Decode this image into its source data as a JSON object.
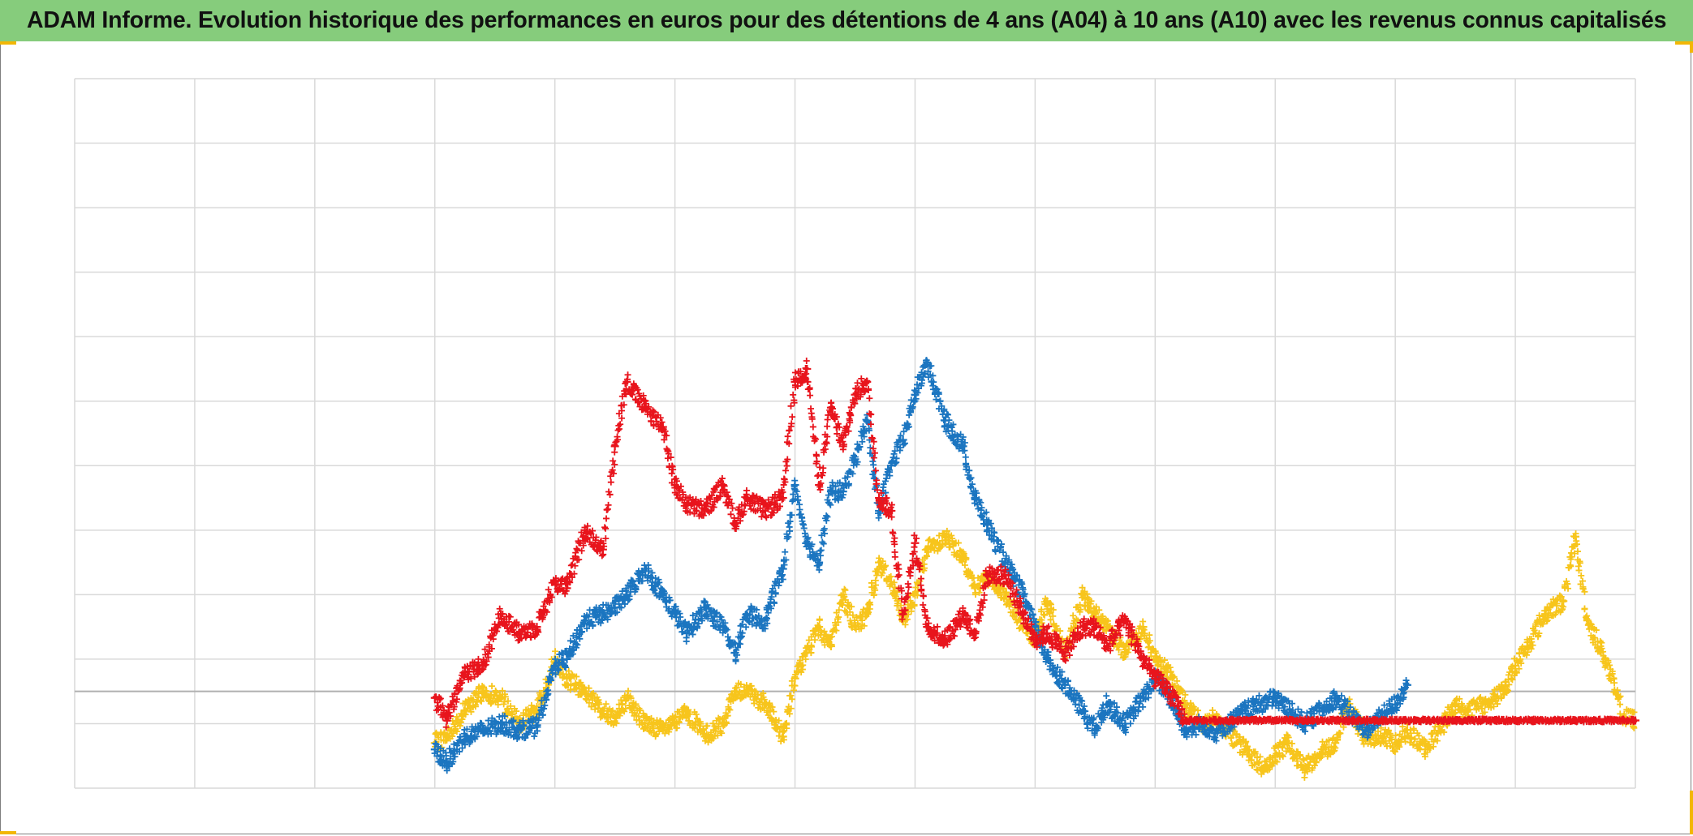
{
  "title": "ADAM Informe. Evolution historique des performances en euros pour des détentions de 4 ans (A04) à 10 ans (A10) avec les revenus connus capitalisés",
  "colors": {
    "title_bar": "#86cc7c",
    "gridline": "#d9d9d9",
    "axis": "#b0b0b0",
    "corner_accent": "#f2b705"
  },
  "chart_data": {
    "type": "scatter",
    "marker": "plus",
    "title": "ADAM Informe. Evolution historique des performances en euros pour des détentions de 4 ans (A04) à 10 ans (A10) avec les revenus connus capitalisés",
    "xlabel": "",
    "ylabel": "",
    "xlim": [
      0,
      13
    ],
    "ylim": [
      -1.5,
      9.5
    ],
    "grid": true,
    "legend": "none",
    "tick_labels_visible": false,
    "series": [
      {
        "color": "#e8141c",
        "x": [
          3.0,
          3.1,
          3.25,
          3.4,
          3.55,
          3.7,
          3.85,
          4.0,
          4.1,
          4.25,
          4.4,
          4.5,
          4.6,
          4.75,
          4.9,
          5.0,
          5.1,
          5.25,
          5.4,
          5.5,
          5.6,
          5.75,
          5.9,
          6.0,
          6.1,
          6.2,
          6.3,
          6.4,
          6.5,
          6.6,
          6.7,
          6.8,
          6.9,
          7.0,
          7.1,
          7.25,
          7.4,
          7.5,
          7.6,
          7.75,
          7.9,
          8.0,
          8.1,
          8.25,
          8.4,
          8.5,
          8.6,
          8.75,
          8.9,
          9.0,
          9.1,
          9.25,
          9.4,
          9.5,
          10.0,
          10.5,
          11.0,
          11.5,
          12.0,
          12.5,
          13.0
        ],
        "y": [
          -0.1,
          -0.45,
          0.3,
          0.4,
          1.2,
          0.9,
          1.0,
          1.7,
          1.6,
          2.5,
          2.2,
          3.8,
          4.8,
          4.4,
          4.1,
          3.2,
          2.9,
          2.8,
          3.2,
          2.6,
          3.0,
          2.8,
          3.0,
          4.8,
          5.0,
          3.2,
          4.4,
          3.8,
          4.6,
          4.8,
          3.0,
          2.8,
          1.2,
          2.3,
          1.0,
          0.8,
          1.2,
          0.9,
          1.8,
          1.8,
          1.2,
          0.8,
          0.9,
          0.6,
          1.0,
          1.0,
          0.7,
          1.1,
          0.5,
          0.2,
          0.05,
          -0.45,
          -0.45,
          -0.45,
          -0.45,
          -0.45,
          -0.45,
          -0.45,
          -0.45,
          -0.45,
          -0.45
        ]
      },
      {
        "color": "#1b75c0",
        "x": [
          3.0,
          3.1,
          3.25,
          3.4,
          3.55,
          3.7,
          3.85,
          4.0,
          4.1,
          4.25,
          4.4,
          4.5,
          4.6,
          4.75,
          4.9,
          5.0,
          5.1,
          5.25,
          5.4,
          5.5,
          5.6,
          5.75,
          5.9,
          6.0,
          6.1,
          6.2,
          6.3,
          6.4,
          6.5,
          6.6,
          6.7,
          6.8,
          6.9,
          7.0,
          7.1,
          7.25,
          7.4,
          7.5,
          7.6,
          7.75,
          7.9,
          8.0,
          8.1,
          8.25,
          8.4,
          8.5,
          8.6,
          8.75,
          8.9,
          9.0,
          9.1,
          9.25,
          9.4,
          9.5,
          9.75,
          10.0,
          10.25,
          10.5,
          10.75,
          11.0,
          11.1
        ],
        "y": [
          -0.9,
          -1.1,
          -0.7,
          -0.6,
          -0.5,
          -0.6,
          -0.55,
          0.4,
          0.5,
          1.1,
          1.2,
          1.3,
          1.5,
          1.9,
          1.5,
          1.2,
          0.9,
          1.3,
          1.0,
          0.6,
          1.2,
          1.1,
          1.9,
          3.2,
          2.3,
          2.0,
          3.1,
          3.1,
          3.6,
          4.2,
          2.8,
          3.5,
          3.9,
          4.6,
          5.1,
          4.2,
          3.8,
          3.0,
          2.6,
          2.0,
          1.5,
          1.0,
          0.5,
          0.1,
          -0.3,
          -0.6,
          -0.2,
          -0.5,
          -0.1,
          0.2,
          0.0,
          -0.6,
          -0.5,
          -0.65,
          -0.3,
          -0.1,
          -0.5,
          -0.1,
          -0.6,
          -0.2,
          0.1
        ]
      },
      {
        "color": "#f7c51c",
        "x": [
          3.0,
          3.1,
          3.25,
          3.4,
          3.55,
          3.7,
          3.85,
          4.0,
          4.1,
          4.25,
          4.4,
          4.5,
          4.6,
          4.75,
          4.9,
          5.0,
          5.1,
          5.25,
          5.4,
          5.5,
          5.6,
          5.75,
          5.9,
          6.0,
          6.1,
          6.2,
          6.3,
          6.4,
          6.5,
          6.6,
          6.7,
          6.8,
          6.9,
          7.0,
          7.1,
          7.25,
          7.4,
          7.5,
          7.6,
          7.75,
          7.9,
          8.0,
          8.1,
          8.25,
          8.4,
          8.5,
          8.6,
          8.75,
          8.9,
          9.0,
          9.1,
          9.25,
          9.4,
          9.5,
          9.6,
          9.75,
          9.9,
          10.0,
          10.1,
          10.25,
          10.4,
          10.5,
          10.6,
          10.75,
          10.9,
          11.0,
          11.1,
          11.25,
          11.4,
          11.5,
          11.6,
          11.75,
          11.9,
          12.0,
          12.1,
          12.25,
          12.4,
          12.5,
          12.6,
          12.75,
          12.9,
          13.0
        ],
        "y": [
          -0.8,
          -0.7,
          -0.3,
          0.0,
          -0.1,
          -0.5,
          -0.3,
          0.5,
          0.2,
          0.0,
          -0.3,
          -0.4,
          -0.1,
          -0.5,
          -0.6,
          -0.5,
          -0.3,
          -0.7,
          -0.5,
          0.0,
          0.0,
          -0.2,
          -0.7,
          0.2,
          0.6,
          1.0,
          0.7,
          1.5,
          1.0,
          1.2,
          2.0,
          1.7,
          1.1,
          1.5,
          2.2,
          2.4,
          2.1,
          1.6,
          1.8,
          1.5,
          1.0,
          0.8,
          1.4,
          0.6,
          1.5,
          1.2,
          1.0,
          0.6,
          1.0,
          0.5,
          0.3,
          -0.2,
          -0.5,
          -0.4,
          -0.6,
          -0.9,
          -1.2,
          -1.0,
          -0.8,
          -1.2,
          -0.9,
          -0.8,
          -0.2,
          -0.7,
          -0.7,
          -0.8,
          -0.6,
          -0.9,
          -0.5,
          -0.2,
          -0.3,
          -0.2,
          0.0,
          0.4,
          0.7,
          1.2,
          1.4,
          2.4,
          1.1,
          0.5,
          -0.4,
          -0.45
        ]
      }
    ]
  }
}
